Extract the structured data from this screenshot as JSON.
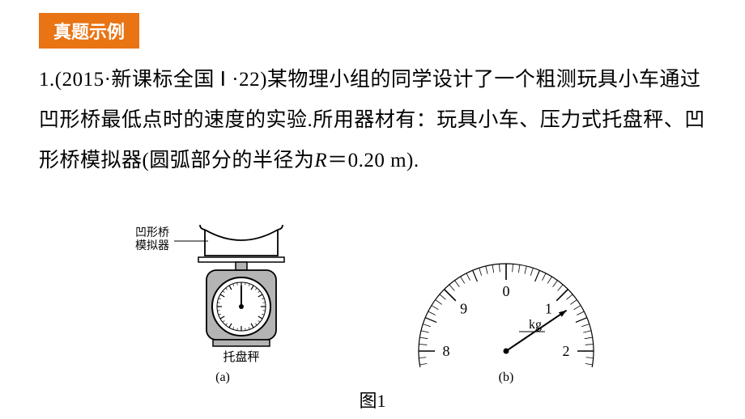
{
  "badge": {
    "text": "真题示例",
    "bg": "#e87414",
    "color": "#ffffff"
  },
  "problem": {
    "html": "1.(2015·新课标全国 Ⅰ ·22)某物理小组的同学设计了一个粗测玩具小车通过凹形桥最低点时的速度的实验.所用器材有：玩具小车、压力式托盘秤、凹形桥模拟器(圆弧部分的半径为<em>R</em>＝0.20 m)."
  },
  "figure": {
    "scale": {
      "label_line1": "凹形桥",
      "label_line2": "模拟器",
      "bottom_label": "托盘秤",
      "sublabel": "(a)",
      "colors": {
        "fill": "#b4b4b4",
        "stroke": "#000000",
        "label": "#000000",
        "bg": "#ffffff"
      }
    },
    "dial": {
      "unit": "kg",
      "numbers": [
        "8",
        "9",
        "0",
        "1",
        "2"
      ],
      "sublabel": "(b)",
      "pointer_angle_deg": 56,
      "colors": {
        "stroke": "#000000",
        "bg": "#ffffff"
      }
    },
    "caption": "图1"
  }
}
